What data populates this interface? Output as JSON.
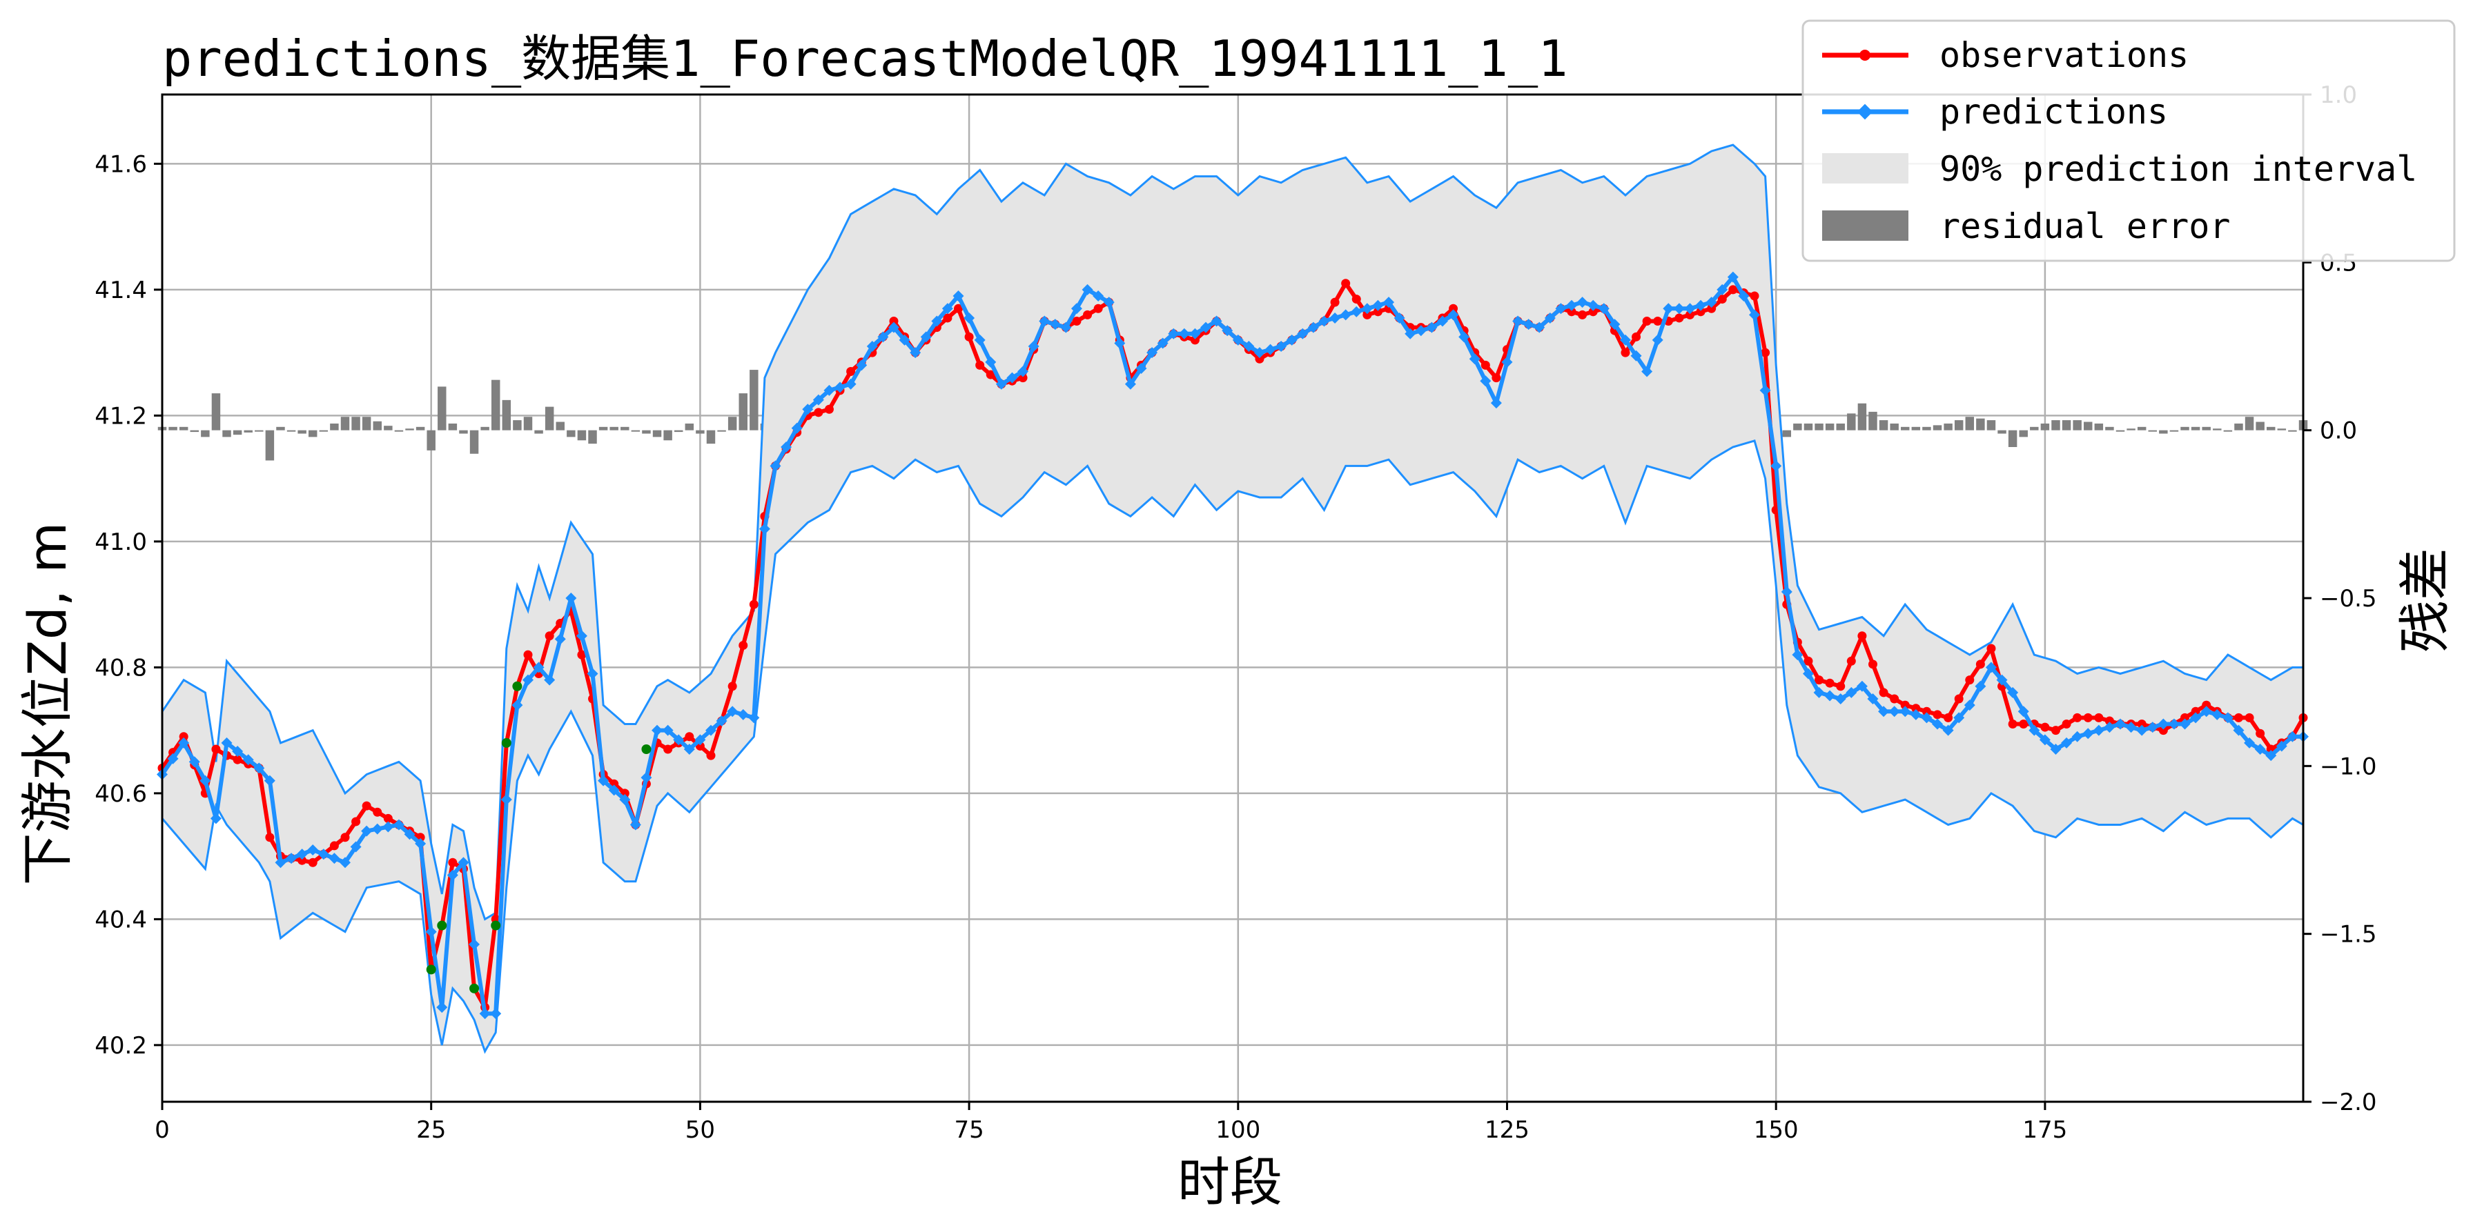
{
  "chart_data": {
    "type": "line",
    "title": "predictions_数据集1_ForecastModelQR_19941111_1_1",
    "xlabel": "时段",
    "ylabel": "下游水位Zd, m",
    "y2label": "残差",
    "xlim": [
      0,
      199
    ],
    "ylim": [
      40.11,
      41.71
    ],
    "y2lim": [
      -2.0,
      1.0
    ],
    "xticks": [
      0,
      25,
      50,
      75,
      100,
      125,
      150,
      175
    ],
    "yticks": [
      40.2,
      40.4,
      40.6,
      40.8,
      41.0,
      41.2,
      41.4,
      41.6
    ],
    "yticklabels": [
      "40.2",
      "40.4",
      "40.6",
      "40.8",
      "41.0",
      "41.2",
      "41.4",
      "41.6"
    ],
    "y2ticks": [
      -2.0,
      -1.5,
      -1.0,
      -0.5,
      0.0,
      0.5,
      1.0
    ],
    "y2ticklabels": [
      "−2.0",
      "−1.5",
      "−1.0",
      "−0.5",
      "0.0",
      "0.5",
      "1.0"
    ],
    "grid": true,
    "legend_position": "top-right",
    "colors": {
      "observations": "#ff0000",
      "predictions": "#1e90ff",
      "interval_fill": "#e5e5e5",
      "interval_edge": "#1e90ff",
      "residual": "#808080",
      "outside_marker": "#008000"
    },
    "legend": [
      {
        "key": "observations",
        "label": "observations"
      },
      {
        "key": "predictions",
        "label": "predictions"
      },
      {
        "key": "interval",
        "label": "90% prediction interval"
      },
      {
        "key": "residual",
        "label": "residual error"
      }
    ],
    "anchors": {
      "x": [
        0,
        2,
        4,
        5,
        6,
        9,
        10,
        11,
        14,
        17,
        19,
        22,
        24,
        25,
        26,
        27,
        28,
        29,
        30,
        31,
        32,
        33,
        34,
        35,
        36,
        38,
        40,
        41,
        43,
        44,
        46,
        47,
        49,
        51,
        53,
        55,
        56,
        57,
        60,
        62,
        64,
        66,
        68,
        70,
        72,
        74,
        76,
        78,
        80,
        82,
        84,
        86,
        88,
        90,
        92,
        94,
        96,
        98,
        100,
        102,
        104,
        106,
        108,
        110,
        112,
        114,
        116,
        118,
        120,
        122,
        124,
        126,
        128,
        130,
        132,
        134,
        136,
        138,
        140,
        142,
        144,
        146,
        148,
        149,
        150,
        151,
        152,
        154,
        156,
        158,
        160,
        162,
        164,
        166,
        168,
        170,
        172,
        174,
        176,
        178,
        180,
        182,
        184,
        186,
        188,
        190,
        192,
        194,
        196,
        198,
        199
      ],
      "observations": [
        40.64,
        40.69,
        40.6,
        40.67,
        40.66,
        40.64,
        40.53,
        40.5,
        40.49,
        40.53,
        40.58,
        40.55,
        40.53,
        40.32,
        40.39,
        40.49,
        40.48,
        40.29,
        40.26,
        40.4,
        40.68,
        40.77,
        40.82,
        40.79,
        40.85,
        40.89,
        40.75,
        40.63,
        40.6,
        40.55,
        40.68,
        40.67,
        40.69,
        40.66,
        40.77,
        40.9,
        41.04,
        41.12,
        41.2,
        41.21,
        41.27,
        41.3,
        41.35,
        41.3,
        41.34,
        41.37,
        41.28,
        41.25,
        41.26,
        41.35,
        41.34,
        41.36,
        41.38,
        41.26,
        41.3,
        41.33,
        41.32,
        41.35,
        41.32,
        41.29,
        41.31,
        41.33,
        41.35,
        41.41,
        41.36,
        41.37,
        41.34,
        41.34,
        41.37,
        41.3,
        41.26,
        41.35,
        41.34,
        41.37,
        41.36,
        41.37,
        41.3,
        41.35,
        41.35,
        41.36,
        41.37,
        41.4,
        41.39,
        41.3,
        41.05,
        40.9,
        40.84,
        40.78,
        40.77,
        40.85,
        40.76,
        40.74,
        40.73,
        40.72,
        40.78,
        40.83,
        40.71,
        40.71,
        40.7,
        40.72,
        40.72,
        40.71,
        40.71,
        40.7,
        40.72,
        40.74,
        40.72,
        40.72,
        40.67,
        40.69,
        40.72
      ],
      "predictions": [
        40.63,
        40.68,
        40.62,
        40.56,
        40.68,
        40.64,
        40.62,
        40.49,
        40.51,
        40.49,
        40.54,
        40.55,
        40.52,
        40.38,
        40.26,
        40.47,
        40.49,
        40.36,
        40.25,
        40.25,
        40.59,
        40.74,
        40.78,
        40.8,
        40.78,
        40.91,
        40.79,
        40.62,
        40.59,
        40.55,
        40.7,
        40.7,
        40.67,
        40.7,
        40.73,
        40.72,
        41.02,
        41.12,
        41.21,
        41.24,
        41.25,
        41.31,
        41.34,
        41.3,
        41.35,
        41.39,
        41.32,
        41.25,
        41.27,
        41.35,
        41.34,
        41.4,
        41.38,
        41.25,
        41.3,
        41.33,
        41.33,
        41.35,
        41.32,
        41.3,
        41.31,
        41.33,
        41.35,
        41.36,
        41.37,
        41.38,
        41.33,
        41.34,
        41.36,
        41.29,
        41.22,
        41.35,
        41.34,
        41.37,
        41.38,
        41.37,
        41.32,
        41.27,
        41.37,
        41.37,
        41.38,
        41.42,
        41.36,
        41.24,
        41.12,
        40.92,
        40.82,
        40.76,
        40.75,
        40.77,
        40.73,
        40.73,
        40.72,
        40.7,
        40.74,
        40.8,
        40.76,
        40.7,
        40.67,
        40.69,
        40.7,
        40.71,
        40.7,
        40.71,
        40.71,
        40.73,
        40.72,
        40.68,
        40.66,
        40.69,
        40.69
      ],
      "lower": [
        40.56,
        40.52,
        40.48,
        40.58,
        40.55,
        40.49,
        40.46,
        40.37,
        40.41,
        40.38,
        40.45,
        40.46,
        40.44,
        40.28,
        40.2,
        40.29,
        40.27,
        40.24,
        40.19,
        40.22,
        40.45,
        40.62,
        40.66,
        40.63,
        40.67,
        40.73,
        40.66,
        40.49,
        40.46,
        40.46,
        40.58,
        40.6,
        40.57,
        40.61,
        40.65,
        40.69,
        40.84,
        40.98,
        41.03,
        41.05,
        41.11,
        41.12,
        41.1,
        41.13,
        41.11,
        41.12,
        41.06,
        41.04,
        41.07,
        41.11,
        41.09,
        41.12,
        41.06,
        41.04,
        41.07,
        41.04,
        41.09,
        41.05,
        41.08,
        41.07,
        41.07,
        41.1,
        41.05,
        41.12,
        41.12,
        41.13,
        41.09,
        41.1,
        41.11,
        41.08,
        41.04,
        41.13,
        41.11,
        41.12,
        41.1,
        41.12,
        41.03,
        41.12,
        41.11,
        41.1,
        41.13,
        41.15,
        41.16,
        41.1,
        40.93,
        40.74,
        40.66,
        40.61,
        40.6,
        40.57,
        40.58,
        40.59,
        40.57,
        40.55,
        40.56,
        40.6,
        40.58,
        40.54,
        40.53,
        40.56,
        40.55,
        40.55,
        40.56,
        40.54,
        40.57,
        40.55,
        40.56,
        40.56,
        40.53,
        40.56,
        40.55
      ],
      "upper": [
        40.73,
        40.78,
        40.76,
        40.65,
        40.81,
        40.75,
        40.73,
        40.68,
        40.7,
        40.6,
        40.63,
        40.65,
        40.62,
        40.52,
        40.44,
        40.55,
        40.54,
        40.45,
        40.4,
        40.41,
        40.83,
        40.93,
        40.89,
        40.96,
        40.91,
        41.03,
        40.98,
        40.74,
        40.71,
        40.71,
        40.77,
        40.78,
        40.76,
        40.79,
        40.85,
        40.89,
        41.26,
        41.3,
        41.4,
        41.45,
        41.52,
        41.54,
        41.56,
        41.55,
        41.52,
        41.56,
        41.59,
        41.54,
        41.57,
        41.55,
        41.6,
        41.58,
        41.57,
        41.55,
        41.58,
        41.56,
        41.58,
        41.58,
        41.55,
        41.58,
        41.57,
        41.59,
        41.6,
        41.61,
        41.57,
        41.58,
        41.54,
        41.56,
        41.58,
        41.55,
        41.53,
        41.57,
        41.58,
        41.59,
        41.57,
        41.58,
        41.55,
        41.58,
        41.59,
        41.6,
        41.62,
        41.63,
        41.6,
        41.58,
        41.28,
        41.06,
        40.93,
        40.86,
        40.87,
        40.88,
        40.85,
        40.9,
        40.86,
        40.84,
        40.82,
        40.84,
        40.9,
        40.82,
        40.81,
        40.79,
        40.8,
        40.79,
        40.8,
        40.81,
        40.79,
        40.78,
        40.82,
        40.8,
        40.78,
        40.8,
        40.8
      ]
    },
    "outside_points": [
      [
        25,
        40.32
      ],
      [
        26,
        40.39
      ],
      [
        29,
        40.29
      ],
      [
        31,
        40.39
      ],
      [
        32,
        40.68
      ],
      [
        33,
        40.77
      ],
      [
        45,
        40.67
      ]
    ]
  }
}
